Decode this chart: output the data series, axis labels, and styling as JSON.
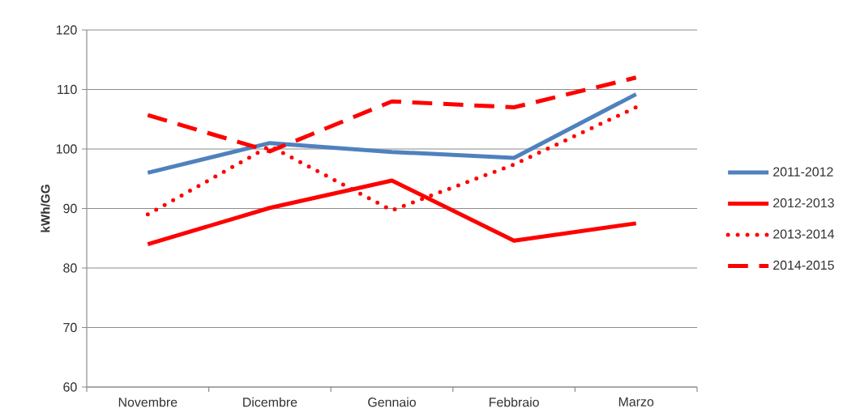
{
  "chart_data": {
    "type": "line",
    "ylabel": "kWh/GG",
    "categories": [
      "Novembre",
      "Dicembre",
      "Gennaio",
      "Febbraio",
      "Marzo"
    ],
    "ylim": [
      60,
      120
    ],
    "yticks": [
      60,
      70,
      80,
      90,
      100,
      110,
      120
    ],
    "grid": "y",
    "legend": "right",
    "series": [
      {
        "name": "2011-2012",
        "color": "#4f81bd",
        "line_style": "solid",
        "values": [
          96,
          101,
          99.5,
          98.5,
          109.2
        ]
      },
      {
        "name": "2012-2013",
        "color": "#ff0000",
        "line_style": "solid",
        "values": [
          84,
          90.1,
          94.7,
          84.6,
          87.5
        ]
      },
      {
        "name": "2013-2014",
        "color": "#ff0000",
        "line_style": "dotted",
        "values": [
          89,
          100.5,
          89.7,
          97.4,
          107
        ]
      },
      {
        "name": "2014-2015",
        "color": "#ff0000",
        "line_style": "dashed",
        "values": [
          105.7,
          99.6,
          108,
          107,
          112
        ]
      }
    ]
  }
}
